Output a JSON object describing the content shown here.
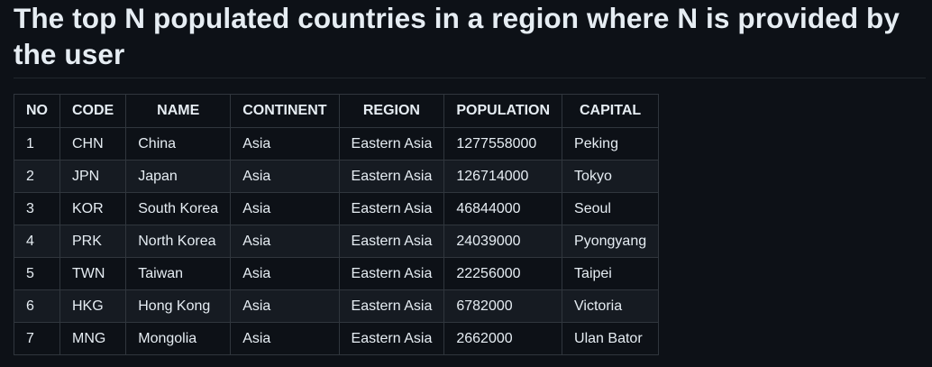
{
  "page": {
    "title": "The top N populated countries in a region where N is provided by the user"
  },
  "table": {
    "headers": [
      "NO",
      "CODE",
      "NAME",
      "CONTINENT",
      "REGION",
      "POPULATION",
      "CAPITAL"
    ],
    "rows": [
      [
        "1",
        "CHN",
        "China",
        "Asia",
        "Eastern Asia",
        "1277558000",
        "Peking"
      ],
      [
        "2",
        "JPN",
        "Japan",
        "Asia",
        "Eastern Asia",
        "126714000",
        "Tokyo"
      ],
      [
        "3",
        "KOR",
        "South Korea",
        "Asia",
        "Eastern Asia",
        "46844000",
        "Seoul"
      ],
      [
        "4",
        "PRK",
        "North Korea",
        "Asia",
        "Eastern Asia",
        "24039000",
        "Pyongyang"
      ],
      [
        "5",
        "TWN",
        "Taiwan",
        "Asia",
        "Eastern Asia",
        "22256000",
        "Taipei"
      ],
      [
        "6",
        "HKG",
        "Hong Kong",
        "Asia",
        "Eastern Asia",
        "6782000",
        "Victoria"
      ],
      [
        "7",
        "MNG",
        "Mongolia",
        "Asia",
        "Eastern Asia",
        "2662000",
        "Ulan Bator"
      ]
    ]
  }
}
